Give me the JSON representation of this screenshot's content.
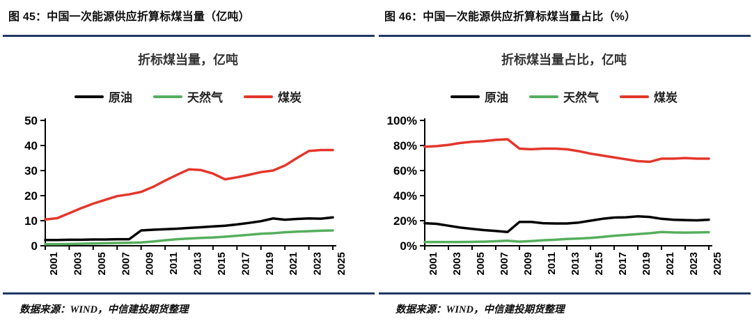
{
  "figures": [
    {
      "header": "图 45：中国一次能源供应折算标煤当量（亿吨）",
      "source": "数据来源：WIND，中信建投期货整理"
    },
    {
      "header": "图 46：中国一次能源供应折算标煤当量占比（%）",
      "source": "数据来源：WIND，中信建投期货整理"
    }
  ],
  "colors": {
    "rule": "#1F3864",
    "crude_oil": "#000000",
    "natural_gas": "#56AE5D",
    "coal": "#E4362B"
  },
  "chart_data": [
    {
      "type": "line",
      "title": "折标煤当量，亿吨",
      "x": [
        2001,
        2002,
        2003,
        2004,
        2005,
        2006,
        2007,
        2008,
        2009,
        2010,
        2011,
        2012,
        2013,
        2014,
        2015,
        2016,
        2017,
        2018,
        2019,
        2020,
        2021,
        2022,
        2023,
        2024,
        2025
      ],
      "x_tick_labels": [
        "2001",
        "2003",
        "2005",
        "2007",
        "2009",
        "2011",
        "2013",
        "2015",
        "2017",
        "2019",
        "2021",
        "2023",
        "2025"
      ],
      "ylim": [
        0,
        50
      ],
      "yticks": [
        0,
        10,
        20,
        30,
        40,
        50
      ],
      "ytick_suffix": "",
      "grid": false,
      "legend_position": "top",
      "series": [
        {
          "name": "原油",
          "color": "#000000",
          "values": [
            2.3,
            2.3,
            2.4,
            2.4,
            2.5,
            2.5,
            2.6,
            2.6,
            6.1,
            6.4,
            6.6,
            6.8,
            7.1,
            7.4,
            7.7,
            8.0,
            8.5,
            9.1,
            9.8,
            10.9,
            10.4,
            10.7,
            10.9,
            10.8,
            11.3
          ]
        },
        {
          "name": "天然气",
          "color": "#56AE5D",
          "values": [
            0.6,
            0.6,
            0.7,
            0.8,
            0.9,
            1.0,
            1.1,
            1.2,
            1.3,
            1.7,
            2.2,
            2.6,
            2.9,
            3.1,
            3.3,
            3.6,
            4.0,
            4.4,
            4.8,
            5.0,
            5.4,
            5.6,
            5.8,
            6.0,
            6.1
          ]
        },
        {
          "name": "煤炭",
          "color": "#E4362B",
          "values": [
            10.5,
            11.0,
            13.0,
            15.0,
            16.8,
            18.3,
            19.8,
            20.5,
            21.5,
            23.5,
            26.0,
            28.3,
            30.5,
            30.2,
            28.8,
            26.5,
            27.3,
            28.3,
            29.4,
            30.0,
            32.0,
            35.0,
            37.8,
            38.2,
            38.2
          ]
        }
      ]
    },
    {
      "type": "line",
      "title": "折标煤当量占比，亿吨",
      "x": [
        2001,
        2002,
        2003,
        2004,
        2005,
        2006,
        2007,
        2008,
        2009,
        2010,
        2011,
        2012,
        2013,
        2014,
        2015,
        2016,
        2017,
        2018,
        2019,
        2020,
        2021,
        2022,
        2023,
        2024,
        2025
      ],
      "x_tick_labels": [
        "2001",
        "2003",
        "2005",
        "2007",
        "2009",
        "2011",
        "2013",
        "2015",
        "2017",
        "2019",
        "2021",
        "2023",
        "2025"
      ],
      "ylim": [
        0,
        100
      ],
      "yticks": [
        0,
        20,
        40,
        60,
        80,
        100
      ],
      "ytick_suffix": "%",
      "grid": false,
      "legend_position": "top",
      "series": [
        {
          "name": "原油",
          "color": "#000000",
          "values": [
            18,
            17.5,
            16,
            14.5,
            13.5,
            12.5,
            11.8,
            11,
            19,
            19,
            18,
            17.8,
            17.8,
            18.5,
            20,
            21.5,
            22.5,
            22.7,
            23.5,
            23,
            21.5,
            20.8,
            20.5,
            20.3,
            20.8
          ]
        },
        {
          "name": "天然气",
          "color": "#56AE5D",
          "values": [
            3,
            3,
            3,
            3,
            3.1,
            3.3,
            3.6,
            4,
            3.3,
            3.8,
            4.4,
            4.8,
            5.4,
            5.8,
            6.3,
            7,
            8,
            8.6,
            9.3,
            10,
            11,
            10.6,
            10.5,
            10.6,
            10.8
          ]
        },
        {
          "name": "煤炭",
          "color": "#E4362B",
          "values": [
            79,
            79.5,
            80.5,
            82,
            83,
            83.5,
            84.5,
            85,
            77.5,
            77,
            77.5,
            77.5,
            77,
            75.5,
            73.5,
            72,
            70.5,
            69,
            67.5,
            67,
            69.5,
            69.5,
            70,
            69.5,
            69.5
          ]
        }
      ]
    }
  ]
}
